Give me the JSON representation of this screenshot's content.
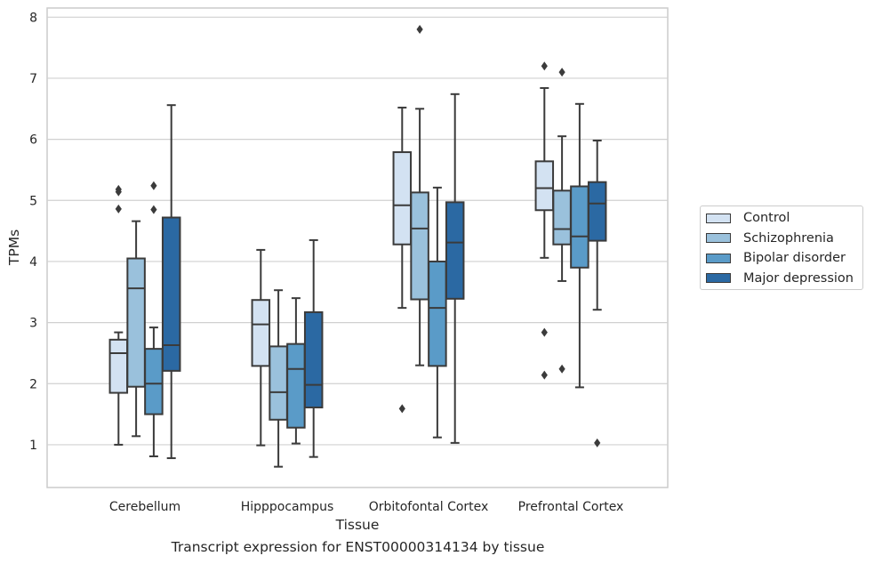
{
  "chart_data": {
    "type": "box",
    "title": "Transcript expression for ENST00000314134 by tissue",
    "xlabel": "Tissue",
    "ylabel": "TPMs",
    "ylim": [
      0.3,
      8.15
    ],
    "yticks": [
      1,
      2,
      3,
      4,
      5,
      6,
      7,
      8
    ],
    "grid": true,
    "legend_position": "right",
    "categories": [
      "Cerebellum",
      "Hipppocampus",
      "Orbitofontal Cortex",
      "Prefrontal Cortex"
    ],
    "series": [
      {
        "name": "Control",
        "color": "#d3e2f2",
        "boxes": [
          {
            "whisker_low": 1.0,
            "q1": 1.85,
            "median": 2.5,
            "q3": 2.72,
            "whisker_high": 2.84,
            "outliers": []
          },
          {
            "whisker_low": 0.99,
            "q1": 2.29,
            "median": 2.97,
            "q3": 3.37,
            "whisker_high": 4.19,
            "outliers": []
          },
          {
            "whisker_low": 3.24,
            "q1": 4.28,
            "median": 4.92,
            "q3": 5.79,
            "whisker_high": 6.52,
            "outliers": [
              1.59
            ]
          },
          {
            "whisker_low": 4.06,
            "q1": 4.84,
            "median": 5.2,
            "q3": 5.64,
            "whisker_high": 6.84,
            "outliers": [
              7.2,
              2.84,
              2.14
            ]
          }
        ]
      },
      {
        "name": "Schizophrenia",
        "color": "#9ac1dc",
        "boxes": [
          {
            "whisker_low": 1.14,
            "q1": 1.95,
            "median": 3.56,
            "q3": 4.05,
            "whisker_high": 4.66,
            "outliers": []
          },
          {
            "whisker_low": 0.64,
            "q1": 1.41,
            "median": 1.86,
            "q3": 2.61,
            "whisker_high": 3.53,
            "outliers": []
          },
          {
            "whisker_low": 2.3,
            "q1": 3.38,
            "median": 4.54,
            "q3": 5.13,
            "whisker_high": 6.5,
            "outliers": [
              7.8
            ]
          },
          {
            "whisker_low": 3.68,
            "q1": 4.28,
            "median": 4.53,
            "q3": 5.16,
            "whisker_high": 6.05,
            "outliers": [
              7.1,
              2.24
            ]
          }
        ]
      },
      {
        "name": "Bipolar disorder",
        "color": "#5a9bc8",
        "boxes": [
          {
            "whisker_low": 0.81,
            "q1": 1.5,
            "median": 2.0,
            "q3": 2.57,
            "whisker_high": 2.92,
            "outliers": [
              5.24,
              4.85
            ]
          },
          {
            "whisker_low": 1.02,
            "q1": 1.28,
            "median": 2.24,
            "q3": 2.65,
            "whisker_high": 3.4,
            "outliers": []
          },
          {
            "whisker_low": 1.12,
            "q1": 2.29,
            "median": 3.24,
            "q3": 4.0,
            "whisker_high": 5.21,
            "outliers": []
          },
          {
            "whisker_low": 1.94,
            "q1": 3.9,
            "median": 4.41,
            "q3": 5.23,
            "whisker_high": 6.58,
            "outliers": []
          }
        ]
      },
      {
        "name": "Major depression",
        "color": "#2b69a3",
        "boxes": [
          {
            "whisker_low": 0.78,
            "q1": 2.21,
            "median": 2.63,
            "q3": 4.72,
            "whisker_high": 6.56,
            "outliers": []
          },
          {
            "whisker_low": 0.8,
            "q1": 1.61,
            "median": 1.98,
            "q3": 3.17,
            "whisker_high": 4.35,
            "outliers": []
          },
          {
            "whisker_low": 1.03,
            "q1": 3.39,
            "median": 4.31,
            "q3": 4.97,
            "whisker_high": 6.74,
            "outliers": []
          },
          {
            "whisker_low": 3.21,
            "q1": 4.34,
            "median": 4.95,
            "q3": 5.3,
            "whisker_high": 5.98,
            "outliers": [
              1.03
            ]
          }
        ]
      }
    ],
    "control_extra_outliers": [
      {
        "category": "Cerebellum",
        "values": [
          5.18,
          5.14,
          4.86
        ]
      }
    ]
  }
}
